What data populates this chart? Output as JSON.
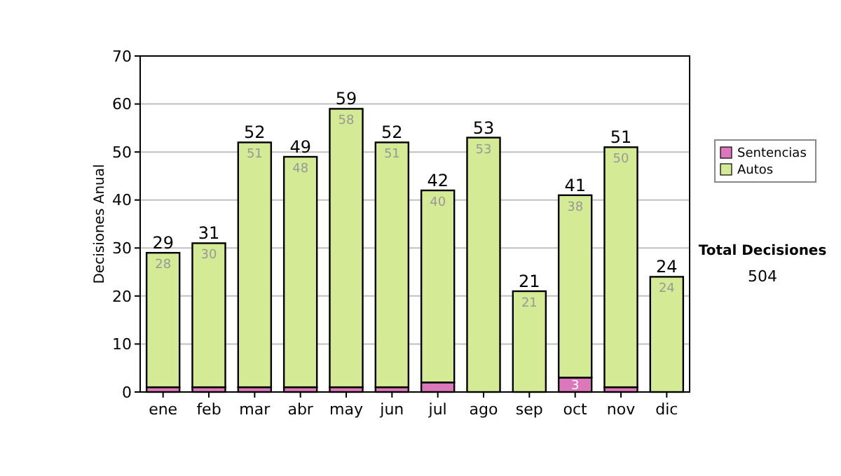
{
  "chart_data": {
    "type": "bar",
    "stacked": true,
    "ylabel": "Decisiones Anual",
    "categories": [
      "ene",
      "feb",
      "mar",
      "abr",
      "may",
      "jun",
      "jul",
      "ago",
      "sep",
      "oct",
      "nov",
      "dic"
    ],
    "series": [
      {
        "name": "Sentencias",
        "color": "#dd77bb",
        "values": [
          1,
          1,
          1,
          1,
          1,
          1,
          2,
          0,
          0,
          3,
          1,
          0
        ],
        "value_labels": [
          null,
          null,
          null,
          null,
          null,
          null,
          null,
          null,
          null,
          "3",
          null,
          null
        ]
      },
      {
        "name": "Autos",
        "color": "#d4ea94",
        "values": [
          28,
          30,
          51,
          48,
          58,
          51,
          40,
          53,
          21,
          38,
          50,
          24
        ],
        "value_labels": [
          "28",
          "30",
          "51",
          "48",
          "58",
          "51",
          "40",
          "53",
          "21",
          "38",
          "50",
          "24"
        ]
      }
    ],
    "totals": [
      "29",
      "31",
      "52",
      "49",
      "59",
      "52",
      "42",
      "53",
      "21",
      "41",
      "51",
      "24"
    ],
    "ylim": [
      0,
      70
    ],
    "yticks": [
      0,
      10,
      20,
      30,
      40,
      50,
      60,
      70
    ],
    "grid": "y",
    "legend": "right",
    "annotations": [
      "Total Decisiones",
      "504"
    ]
  }
}
